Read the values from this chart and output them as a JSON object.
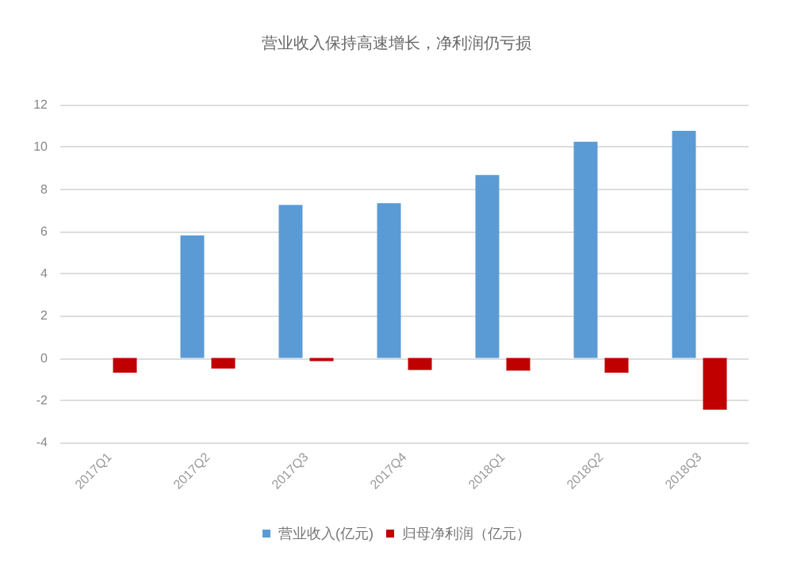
{
  "chart_data": {
    "type": "bar",
    "title": "营业收入保持高速增长，净利润仍亏损",
    "categories": [
      "2017Q1",
      "2017Q2",
      "2017Q3",
      "2017Q4",
      "2018Q1",
      "2018Q2",
      "2018Q3"
    ],
    "series": [
      {
        "name": "营业收入(亿元)",
        "color": "#5b9bd5",
        "values": [
          null,
          5.8,
          7.25,
          7.33,
          8.67,
          10.24,
          10.76
        ]
      },
      {
        "name": "归母净利润（亿元）",
        "color": "#c00000",
        "values": [
          -0.7,
          -0.5,
          -0.15,
          -0.57,
          -0.6,
          -0.7,
          -2.45
        ]
      }
    ],
    "ylim": [
      -4,
      12
    ],
    "yticks": [
      -4,
      -2,
      0,
      2,
      4,
      6,
      8,
      10,
      12
    ],
    "grid": "y",
    "legend": "bottom"
  }
}
